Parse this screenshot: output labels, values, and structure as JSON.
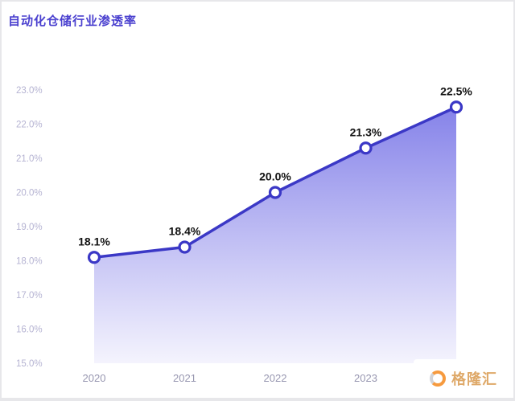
{
  "header": {
    "title": "自动化仓储行业渗透率"
  },
  "watermark": {
    "text": "格隆汇"
  },
  "chart_data": {
    "type": "area",
    "title": "自动化仓储行业渗透率",
    "categories": [
      "2020",
      "2021",
      "2022",
      "2023",
      ""
    ],
    "series": [
      {
        "name": "渗透率",
        "values": [
          18.1,
          18.4,
          20.0,
          21.3,
          22.5
        ]
      }
    ],
    "data_labels": [
      "18.1%",
      "18.4%",
      "20.0%",
      "21.3%",
      "22.5%"
    ],
    "ylim": [
      15,
      23
    ],
    "ytick_step": 1,
    "ytick_labels": [
      "15.0%",
      "16.0%",
      "17.0%",
      "18.0%",
      "19.0%",
      "20.0%",
      "21.0%",
      "22.0%",
      "23.0%"
    ],
    "grid": false,
    "legend": "none",
    "line_color": "#3b38c6",
    "area_top_color": "#7f7ce8",
    "area_bottom_color": "#f3f2fd",
    "marker_fill": "#ffffff",
    "yaxis_label_color": "#b5b3d2",
    "xaxis_label_color": "#9796b0",
    "value_label_color": "#121212",
    "title_color": "#4a40cf"
  }
}
